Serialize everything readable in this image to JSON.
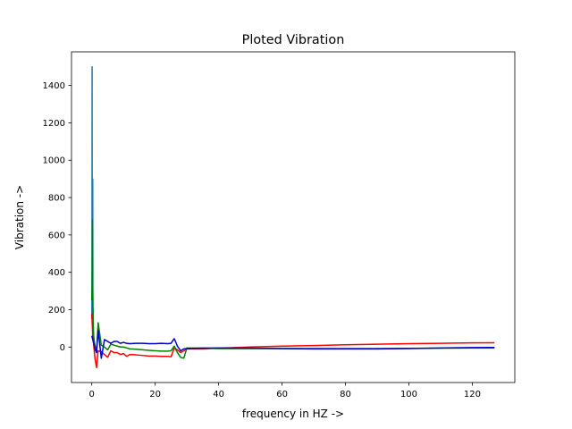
{
  "chart_data": {
    "type": "line",
    "title": "Ploted Vibration",
    "xlabel": "frequency in HZ ->",
    "ylabel": "Vibration ->",
    "xlim": [
      -6.4,
      133.4
    ],
    "ylim": [
      -190,
      1580
    ],
    "xticks": [
      0,
      20,
      40,
      60,
      80,
      100,
      120
    ],
    "yticks": [
      0,
      200,
      400,
      600,
      800,
      1000,
      1200,
      1400
    ],
    "grid": false,
    "legend": "none",
    "series": [
      {
        "color": "#1f77b4",
        "x": [
          0,
          0.05,
          0.1,
          0.15,
          0.2,
          0.25,
          0.3,
          0.35,
          0.4,
          0.45,
          0.5,
          0.6,
          0.8
        ],
        "y": [
          150,
          300,
          1500,
          200,
          400,
          100,
          900,
          50,
          200,
          80,
          30,
          10,
          0
        ]
      },
      {
        "color": "#ff0000",
        "x": [
          0,
          0.3,
          0.6,
          1,
          1.5,
          2,
          3,
          4,
          5,
          6,
          7,
          8,
          9,
          10,
          11,
          12,
          14,
          16,
          18,
          20,
          22,
          24,
          25,
          26,
          27,
          28,
          29,
          30,
          35,
          40,
          50,
          60,
          70,
          80,
          90,
          100,
          110,
          120,
          127
        ],
        "y": [
          180,
          60,
          10,
          -60,
          -110,
          -20,
          -25,
          -40,
          -55,
          -20,
          -30,
          -30,
          -40,
          -35,
          -50,
          -40,
          -42,
          -45,
          -48,
          -48,
          -50,
          -50,
          -52,
          -5,
          -15,
          -30,
          -20,
          -10,
          -10,
          -6,
          0,
          5,
          8,
          12,
          15,
          18,
          20,
          22,
          23
        ]
      },
      {
        "color": "#008000",
        "x": [
          0,
          0.1,
          0.2,
          0.3,
          0.4,
          0.6,
          0.8,
          1,
          1.5,
          2,
          3,
          4,
          5,
          6,
          7,
          8,
          9,
          10,
          11,
          12,
          14,
          16,
          18,
          20,
          22,
          24,
          25,
          26,
          27,
          28,
          29,
          30,
          35,
          40,
          50,
          60,
          70,
          80,
          90,
          100,
          110,
          120,
          127
        ],
        "y": [
          250,
          330,
          680,
          300,
          150,
          60,
          30,
          10,
          -30,
          130,
          10,
          0,
          -15,
          15,
          10,
          5,
          0,
          0,
          -5,
          -10,
          -12,
          -15,
          -18,
          -20,
          -22,
          -22,
          -20,
          5,
          -30,
          -55,
          -60,
          -5,
          -6,
          -8,
          -8,
          -8,
          -8,
          -8,
          -8,
          -7,
          -6,
          -5,
          -5
        ]
      },
      {
        "color": "#0000cc",
        "x": [
          0,
          0.3,
          0.6,
          1,
          1.5,
          2,
          3,
          4,
          5,
          6,
          7,
          8,
          9,
          10,
          11,
          12,
          14,
          16,
          18,
          20,
          22,
          24,
          25,
          26,
          27,
          28,
          29,
          30,
          35,
          40,
          50,
          60,
          70,
          80,
          90,
          100,
          110,
          120,
          127
        ],
        "y": [
          60,
          40,
          20,
          -10,
          -30,
          90,
          -60,
          40,
          30,
          20,
          30,
          30,
          20,
          25,
          20,
          18,
          20,
          20,
          18,
          18,
          20,
          18,
          20,
          45,
          5,
          -20,
          -10,
          -8,
          -6,
          -5,
          -6,
          -8,
          -10,
          -10,
          -10,
          -8,
          -5,
          -3,
          -2
        ]
      }
    ]
  }
}
